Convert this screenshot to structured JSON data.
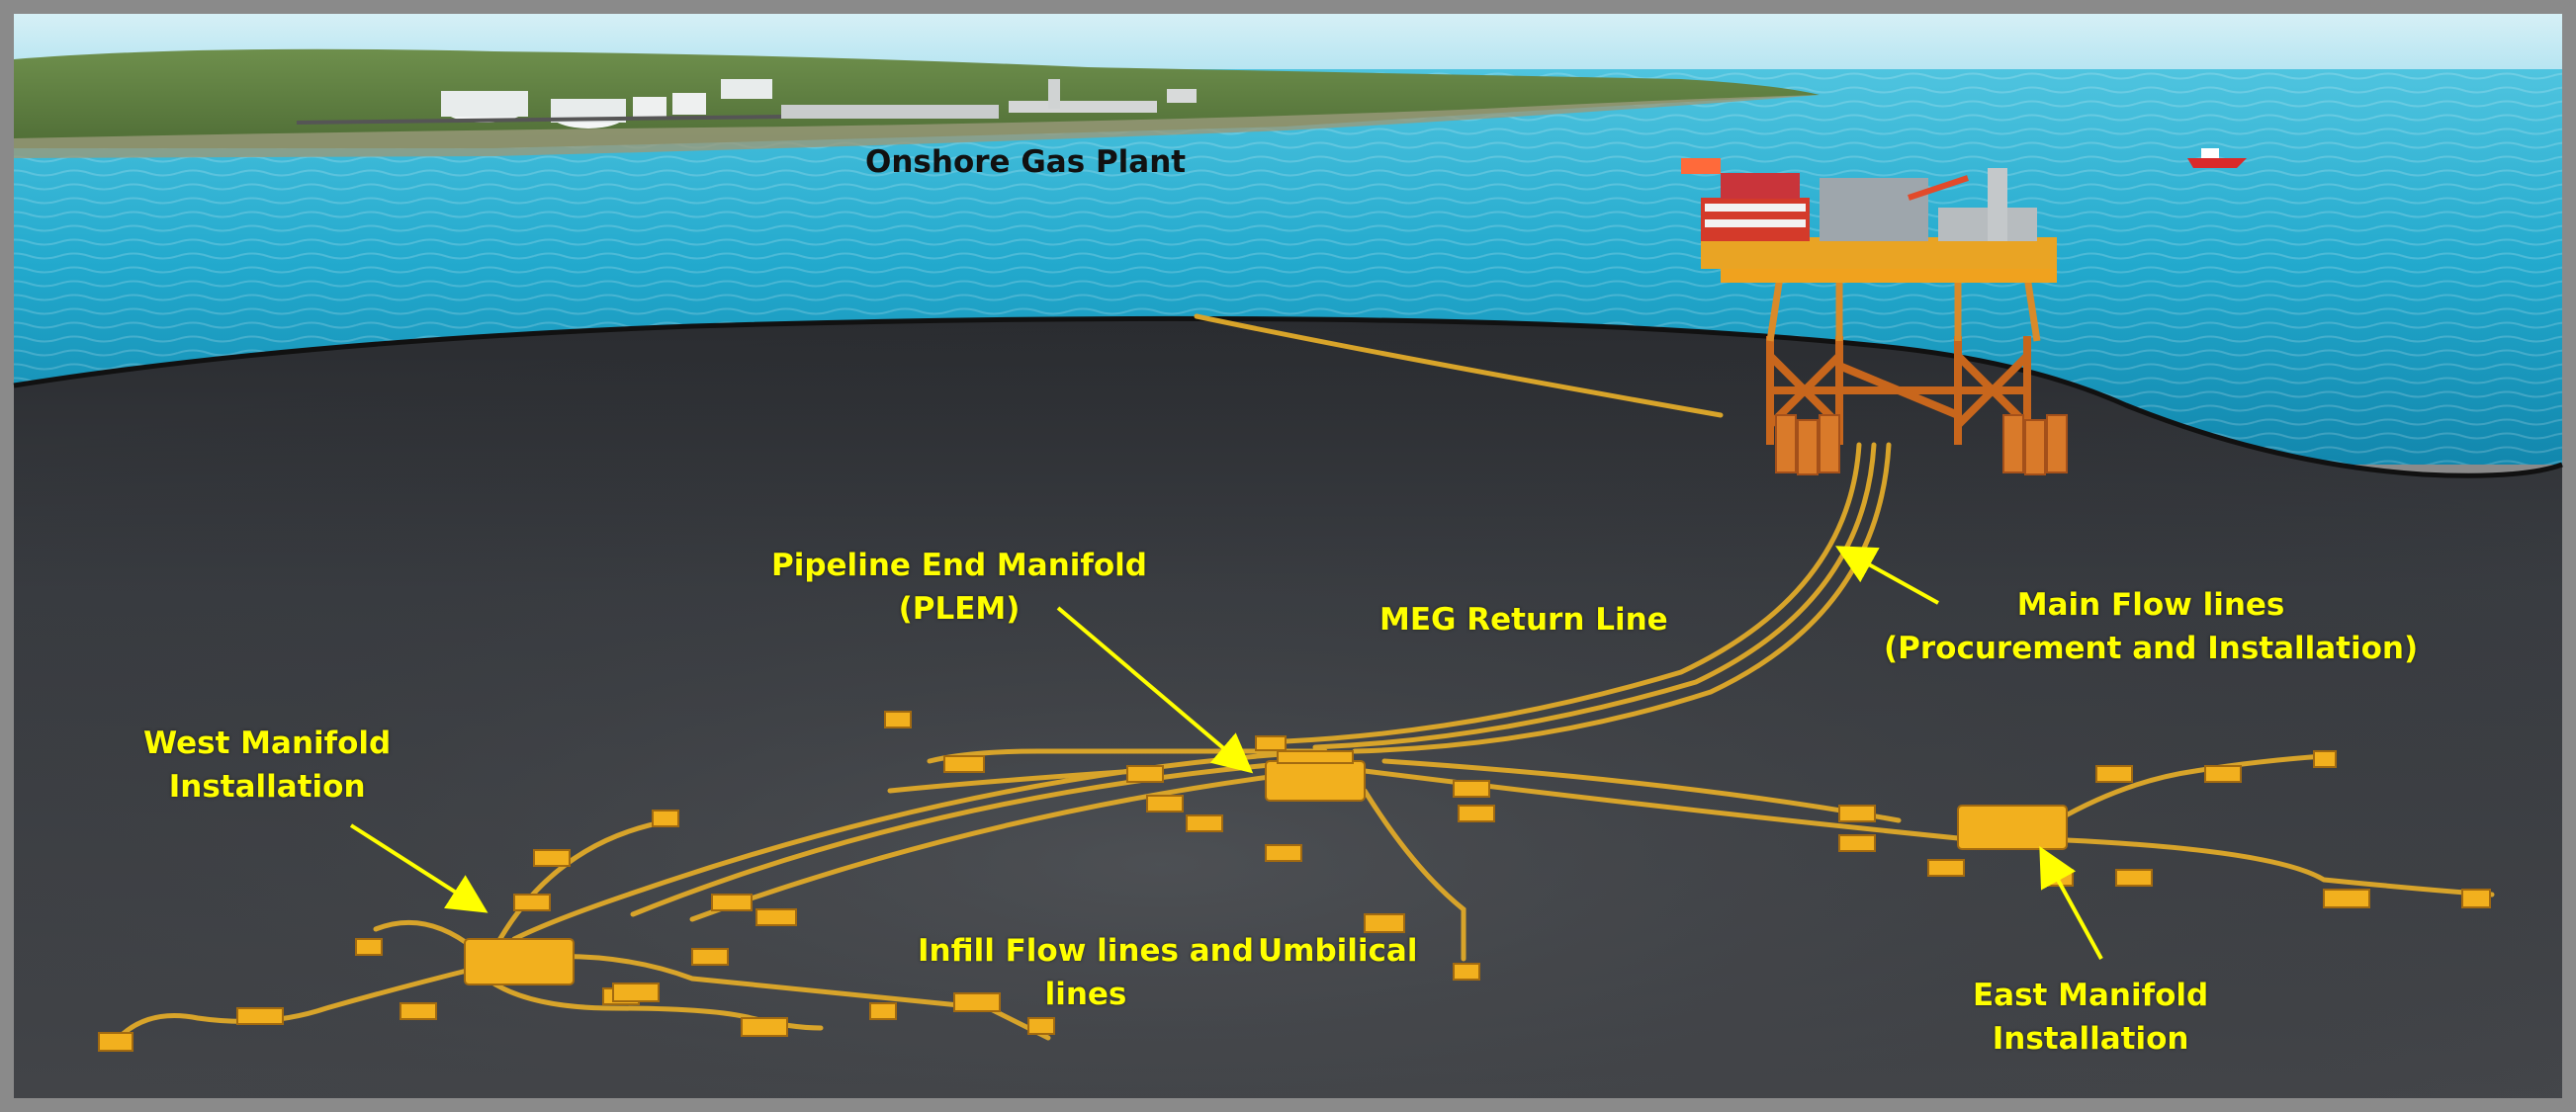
{
  "colors": {
    "label": "#ffff00",
    "label_dark": "#111111",
    "equipment": "#f2b01e",
    "sea": "#1aa7c8",
    "seabed": "#3a3c40",
    "land": "#6f8d4a",
    "sky": "#bfe7f2"
  },
  "labels": {
    "onshore_gas_plant": "Onshore Gas Plant",
    "plem": [
      "Pipeline End Manifold",
      "(PLEM)"
    ],
    "meg_return_line": "MEG Return Line",
    "main_flow_lines": [
      "Main Flow lines",
      "(Procurement and Installation)"
    ],
    "west_manifold": [
      "West Manifold",
      "Installation"
    ],
    "infill_flow_lines": [
      "Infill  Flow lines and",
      "lines"
    ],
    "umbilical": "Umbilical",
    "east_manifold": [
      "East Manifold",
      "Installation"
    ]
  }
}
